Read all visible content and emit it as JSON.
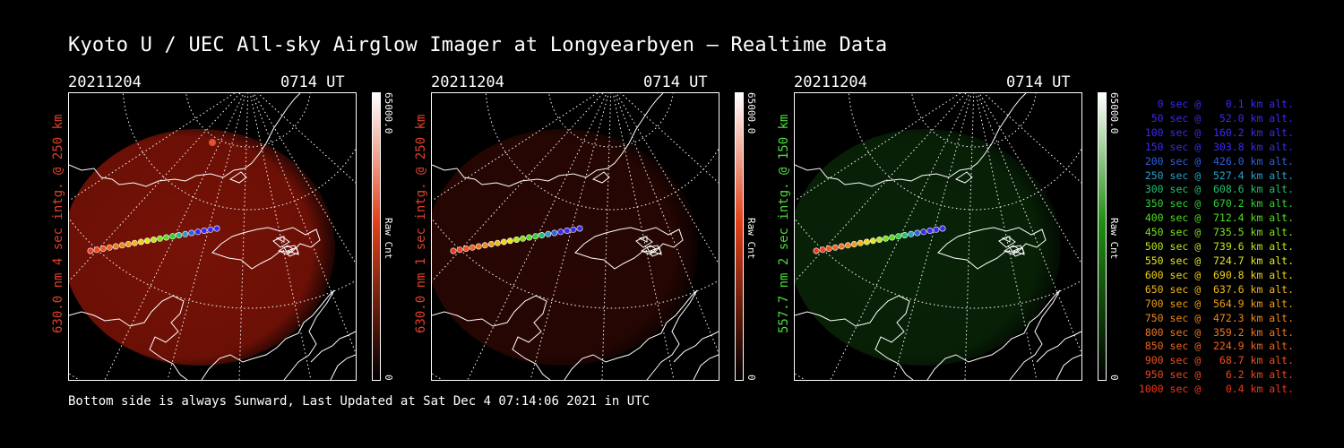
{
  "title": "Kyoto U / UEC All-sky Airglow Imager at Longyearbyen — Realtime Data",
  "footer": "Bottom side is always Sunward, Last Updated at Sat Dec  4 07:14:06 2021 in UTC",
  "panels": [
    {
      "date": "20211204",
      "time": "0714 UT",
      "side_label": "630.0 nm 4 sec intg. @ 250 km",
      "label_color": "#e0402a",
      "cbar_max": "65000.0",
      "cbar_min": "0",
      "cbar_title": "Raw Cnt",
      "glow": "#8c1508",
      "glow_opacity": 0.85,
      "cbar_color": "#e0401a"
    },
    {
      "date": "20211204",
      "time": "0714 UT",
      "side_label": "630.0 nm 1 sec intg. @ 250 km",
      "label_color": "#e0402a",
      "cbar_max": "65000.0",
      "cbar_min": "0",
      "cbar_title": "Raw Cnt",
      "glow": "#3a0904",
      "glow_opacity": 0.7,
      "cbar_color": "#e0401a"
    },
    {
      "date": "20211204",
      "time": "0714 UT",
      "side_label": "557.7 nm 2 sec intg. @ 150 km",
      "label_color": "#4ade3a",
      "cbar_max": "65000.0",
      "cbar_min": "0",
      "cbar_title": "Raw Cnt",
      "glow": "#0e3a0c",
      "glow_opacity": 0.6,
      "cbar_color": "#1f8f10"
    }
  ],
  "legend": [
    {
      "text": "   0 sec @    0.1 km alt.",
      "color": "#3a2af0"
    },
    {
      "text": "  50 sec @   52.0 km alt.",
      "color": "#3a2af0"
    },
    {
      "text": " 100 sec @  160.2 km alt.",
      "color": "#3a2af0"
    },
    {
      "text": " 150 sec @  303.8 km alt.",
      "color": "#3a2af0"
    },
    {
      "text": " 200 sec @  426.0 km alt.",
      "color": "#2f5fe6"
    },
    {
      "text": " 250 sec @  527.4 km alt.",
      "color": "#2aa0c8"
    },
    {
      "text": " 300 sec @  608.6 km alt.",
      "color": "#20c070"
    },
    {
      "text": " 350 sec @  670.2 km alt.",
      "color": "#36d036"
    },
    {
      "text": " 400 sec @  712.4 km alt.",
      "color": "#4ee01c"
    },
    {
      "text": " 450 sec @  735.5 km alt.",
      "color": "#7ae21c"
    },
    {
      "text": " 500 sec @  739.6 km alt.",
      "color": "#b8e81c"
    },
    {
      "text": " 550 sec @  724.7 km alt.",
      "color": "#e4e81c"
    },
    {
      "text": " 600 sec @  690.8 km alt.",
      "color": "#f0d21c"
    },
    {
      "text": " 650 sec @  637.6 km alt.",
      "color": "#f0b81c"
    },
    {
      "text": " 700 sec @  564.9 km alt.",
      "color": "#f09e1c"
    },
    {
      "text": " 750 sec @  472.3 km alt.",
      "color": "#f0881c"
    },
    {
      "text": " 800 sec @  359.2 km alt.",
      "color": "#f0741c"
    },
    {
      "text": " 850 sec @  224.9 km alt.",
      "color": "#f0641c"
    },
    {
      "text": " 900 sec @   68.7 km alt.",
      "color": "#f0521c"
    },
    {
      "text": " 950 sec @    6.2 km alt.",
      "color": "#f0441c"
    },
    {
      "text": "1000 sec @    0.4 km alt.",
      "color": "#f0361c"
    }
  ]
}
